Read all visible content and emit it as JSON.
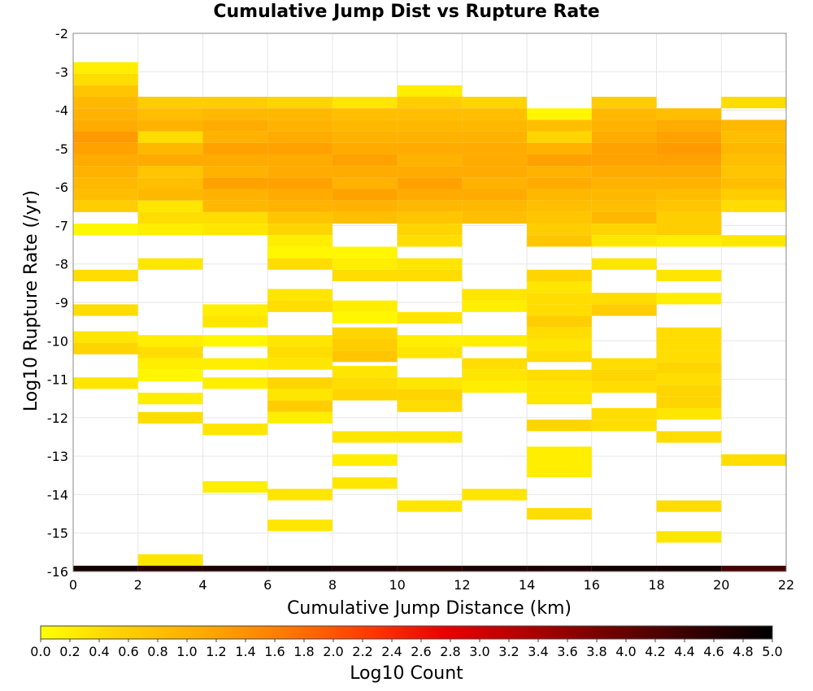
{
  "chart_data": {
    "type": "heatmap",
    "title": "Cumulative Jump Dist vs Rupture Rate",
    "xlabel": "Cumulative Jump Distance (km)",
    "ylabel": "Log10 Rupture Rate (/yr)",
    "xlim": [
      0,
      22
    ],
    "ylim": [
      -16,
      -2
    ],
    "xticks": [
      0,
      2,
      4,
      6,
      8,
      10,
      12,
      14,
      16,
      18,
      20,
      22
    ],
    "yticks": [
      -2,
      -3,
      -4,
      -5,
      -6,
      -7,
      -8,
      -9,
      -10,
      -11,
      -12,
      -13,
      -14,
      -15,
      -16
    ],
    "x_bin_width": 2,
    "y_bin_height": 0.3,
    "grid": true,
    "colorbar": {
      "label": "Log10 Count",
      "min": 0.0,
      "max": 5.0,
      "ticks": [
        "0.0",
        "0.2",
        "0.4",
        "0.6",
        "0.8",
        "1.0",
        "1.2",
        "1.4",
        "1.6",
        "1.8",
        "2.0",
        "2.2",
        "2.4",
        "2.6",
        "2.8",
        "3.0",
        "3.2",
        "3.4",
        "3.6",
        "3.8",
        "4.0",
        "4.2",
        "4.4",
        "4.6",
        "4.8",
        "5.0"
      ],
      "colors": [
        "#ffff00",
        "#ffd000",
        "#ffaa00",
        "#ff7a00",
        "#ff3c00",
        "#e80000",
        "#b00000",
        "#700000",
        "#380000",
        "#000000"
      ]
    },
    "columns": [
      {
        "x": 0,
        "cells": [
          {
            "y": -2.9,
            "v": 0.2
          },
          {
            "y": -3.2,
            "v": 0.4
          },
          {
            "y": -3.5,
            "v": 0.7
          },
          {
            "y": -3.8,
            "v": 0.9
          },
          {
            "y": -4.1,
            "v": 1.0
          },
          {
            "y": -4.4,
            "v": 1.1
          },
          {
            "y": -4.7,
            "v": 1.3
          },
          {
            "y": -5.0,
            "v": 1.2
          },
          {
            "y": -5.3,
            "v": 1.1
          },
          {
            "y": -5.6,
            "v": 1.0
          },
          {
            "y": -5.9,
            "v": 0.9
          },
          {
            "y": -6.2,
            "v": 0.8
          },
          {
            "y": -6.5,
            "v": 0.6
          },
          {
            "y": -7.1,
            "v": 0.1
          },
          {
            "y": -8.3,
            "v": 0.4
          },
          {
            "y": -9.2,
            "v": 0.4
          },
          {
            "y": -9.9,
            "v": 0.3
          },
          {
            "y": -10.2,
            "v": 0.5
          },
          {
            "y": -11.1,
            "v": 0.3
          },
          {
            "y": -16.0,
            "v": 4.8
          }
        ]
      },
      {
        "x": 2,
        "cells": [
          {
            "y": -3.8,
            "v": 0.6
          },
          {
            "y": -4.1,
            "v": 0.8
          },
          {
            "y": -4.4,
            "v": 1.0
          },
          {
            "y": -4.7,
            "v": 0.4
          },
          {
            "y": -5.0,
            "v": 0.9
          },
          {
            "y": -5.3,
            "v": 1.1
          },
          {
            "y": -5.6,
            "v": 0.7
          },
          {
            "y": -5.9,
            "v": 0.8
          },
          {
            "y": -6.2,
            "v": 0.9
          },
          {
            "y": -6.5,
            "v": 0.3
          },
          {
            "y": -6.8,
            "v": 0.4
          },
          {
            "y": -7.1,
            "v": 0.2
          },
          {
            "y": -8.0,
            "v": 0.3
          },
          {
            "y": -10.0,
            "v": 0.2
          },
          {
            "y": -10.3,
            "v": 0.4
          },
          {
            "y": -10.6,
            "v": 0.2
          },
          {
            "y": -10.9,
            "v": 0.1
          },
          {
            "y": -11.5,
            "v": 0.2
          },
          {
            "y": -12.0,
            "v": 0.4
          },
          {
            "y": -15.7,
            "v": 0.3
          },
          {
            "y": -16.0,
            "v": 4.6
          }
        ]
      },
      {
        "x": 4,
        "cells": [
          {
            "y": -3.8,
            "v": 0.6
          },
          {
            "y": -4.1,
            "v": 0.9
          },
          {
            "y": -4.4,
            "v": 1.1
          },
          {
            "y": -4.7,
            "v": 1.0
          },
          {
            "y": -5.0,
            "v": 1.2
          },
          {
            "y": -5.3,
            "v": 1.1
          },
          {
            "y": -5.6,
            "v": 1.0
          },
          {
            "y": -5.9,
            "v": 1.2
          },
          {
            "y": -6.2,
            "v": 1.0
          },
          {
            "y": -6.5,
            "v": 0.9
          },
          {
            "y": -6.8,
            "v": 0.4
          },
          {
            "y": -7.1,
            "v": 0.3
          },
          {
            "y": -9.2,
            "v": 0.2
          },
          {
            "y": -9.5,
            "v": 0.3
          },
          {
            "y": -10.0,
            "v": 0.1
          },
          {
            "y": -10.6,
            "v": 0.2
          },
          {
            "y": -11.1,
            "v": 0.2
          },
          {
            "y": -12.3,
            "v": 0.3
          },
          {
            "y": -13.8,
            "v": 0.2
          },
          {
            "y": -16.0,
            "v": 4.7
          }
        ]
      },
      {
        "x": 6,
        "cells": [
          {
            "y": -3.8,
            "v": 0.5
          },
          {
            "y": -4.1,
            "v": 0.9
          },
          {
            "y": -4.4,
            "v": 1.0
          },
          {
            "y": -4.7,
            "v": 1.1
          },
          {
            "y": -5.0,
            "v": 1.2
          },
          {
            "y": -5.3,
            "v": 1.1
          },
          {
            "y": -5.6,
            "v": 1.1
          },
          {
            "y": -5.9,
            "v": 1.2
          },
          {
            "y": -6.2,
            "v": 1.1
          },
          {
            "y": -6.5,
            "v": 1.0
          },
          {
            "y": -6.8,
            "v": 0.7
          },
          {
            "y": -7.1,
            "v": 0.5
          },
          {
            "y": -7.4,
            "v": 0.2
          },
          {
            "y": -7.7,
            "v": 0.1
          },
          {
            "y": -8.0,
            "v": 0.4
          },
          {
            "y": -8.8,
            "v": 0.3
          },
          {
            "y": -9.1,
            "v": 0.4
          },
          {
            "y": -10.0,
            "v": 0.3
          },
          {
            "y": -10.3,
            "v": 0.4
          },
          {
            "y": -10.6,
            "v": 0.3
          },
          {
            "y": -11.1,
            "v": 0.5
          },
          {
            "y": -11.4,
            "v": 0.3
          },
          {
            "y": -11.7,
            "v": 0.6
          },
          {
            "y": -12.0,
            "v": 0.2
          },
          {
            "y": -14.0,
            "v": 0.3
          },
          {
            "y": -14.8,
            "v": 0.3
          },
          {
            "y": -16.0,
            "v": 4.8
          }
        ]
      },
      {
        "x": 8,
        "cells": [
          {
            "y": -3.8,
            "v": 0.3
          },
          {
            "y": -4.1,
            "v": 0.8
          },
          {
            "y": -4.4,
            "v": 0.9
          },
          {
            "y": -4.7,
            "v": 1.0
          },
          {
            "y": -5.0,
            "v": 1.1
          },
          {
            "y": -5.3,
            "v": 1.2
          },
          {
            "y": -5.6,
            "v": 1.1
          },
          {
            "y": -5.9,
            "v": 1.0
          },
          {
            "y": -6.2,
            "v": 1.2
          },
          {
            "y": -6.5,
            "v": 1.0
          },
          {
            "y": -6.8,
            "v": 0.8
          },
          {
            "y": -7.7,
            "v": 0.1
          },
          {
            "y": -8.0,
            "v": 0.2
          },
          {
            "y": -8.3,
            "v": 0.4
          },
          {
            "y": -9.1,
            "v": 0.2
          },
          {
            "y": -9.4,
            "v": 0.1
          },
          {
            "y": -9.8,
            "v": 0.5
          },
          {
            "y": -10.1,
            "v": 0.6
          },
          {
            "y": -10.4,
            "v": 0.7
          },
          {
            "y": -10.8,
            "v": 0.3
          },
          {
            "y": -11.1,
            "v": 0.4
          },
          {
            "y": -11.4,
            "v": 0.5
          },
          {
            "y": -12.5,
            "v": 0.3
          },
          {
            "y": -13.1,
            "v": 0.2
          },
          {
            "y": -13.7,
            "v": 0.3
          },
          {
            "y": -16.0,
            "v": 4.7
          }
        ]
      },
      {
        "x": 10,
        "cells": [
          {
            "y": -3.5,
            "v": 0.2
          },
          {
            "y": -3.8,
            "v": 0.6
          },
          {
            "y": -4.1,
            "v": 0.8
          },
          {
            "y": -4.4,
            "v": 0.9
          },
          {
            "y": -4.7,
            "v": 1.0
          },
          {
            "y": -5.0,
            "v": 1.1
          },
          {
            "y": -5.3,
            "v": 1.0
          },
          {
            "y": -5.6,
            "v": 1.1
          },
          {
            "y": -5.9,
            "v": 1.2
          },
          {
            "y": -6.2,
            "v": 1.1
          },
          {
            "y": -6.5,
            "v": 0.9
          },
          {
            "y": -6.8,
            "v": 0.7
          },
          {
            "y": -7.1,
            "v": 0.5
          },
          {
            "y": -7.4,
            "v": 0.4
          },
          {
            "y": -8.0,
            "v": 0.3
          },
          {
            "y": -8.3,
            "v": 0.4
          },
          {
            "y": -9.4,
            "v": 0.3
          },
          {
            "y": -10.0,
            "v": 0.2
          },
          {
            "y": -10.3,
            "v": 0.3
          },
          {
            "y": -11.1,
            "v": 0.3
          },
          {
            "y": -11.4,
            "v": 0.5
          },
          {
            "y": -11.7,
            "v": 0.4
          },
          {
            "y": -12.5,
            "v": 0.3
          },
          {
            "y": -14.3,
            "v": 0.3
          },
          {
            "y": -16.0,
            "v": 4.6
          }
        ]
      },
      {
        "x": 12,
        "cells": [
          {
            "y": -3.8,
            "v": 0.5
          },
          {
            "y": -4.1,
            "v": 0.8
          },
          {
            "y": -4.4,
            "v": 0.9
          },
          {
            "y": -4.7,
            "v": 1.0
          },
          {
            "y": -5.0,
            "v": 1.1
          },
          {
            "y": -5.3,
            "v": 1.1
          },
          {
            "y": -5.6,
            "v": 1.1
          },
          {
            "y": -5.9,
            "v": 1.0
          },
          {
            "y": -6.2,
            "v": 1.1
          },
          {
            "y": -6.5,
            "v": 0.9
          },
          {
            "y": -6.8,
            "v": 0.8
          },
          {
            "y": -8.8,
            "v": 0.3
          },
          {
            "y": -9.1,
            "v": 0.2
          },
          {
            "y": -10.0,
            "v": 0.2
          },
          {
            "y": -10.6,
            "v": 0.4
          },
          {
            "y": -10.9,
            "v": 0.3
          },
          {
            "y": -11.2,
            "v": 0.2
          },
          {
            "y": -14.0,
            "v": 0.3
          },
          {
            "y": -16.0,
            "v": 4.7
          }
        ]
      },
      {
        "x": 14,
        "cells": [
          {
            "y": -4.1,
            "v": 0.1
          },
          {
            "y": -4.4,
            "v": 0.8
          },
          {
            "y": -4.7,
            "v": 0.5
          },
          {
            "y": -5.0,
            "v": 1.0
          },
          {
            "y": -5.3,
            "v": 1.2
          },
          {
            "y": -5.6,
            "v": 1.0
          },
          {
            "y": -5.9,
            "v": 1.1
          },
          {
            "y": -6.2,
            "v": 0.9
          },
          {
            "y": -6.5,
            "v": 0.8
          },
          {
            "y": -6.8,
            "v": 0.7
          },
          {
            "y": -7.1,
            "v": 0.6
          },
          {
            "y": -7.4,
            "v": 0.7
          },
          {
            "y": -8.3,
            "v": 0.5
          },
          {
            "y": -8.6,
            "v": 0.3
          },
          {
            "y": -8.9,
            "v": 0.4
          },
          {
            "y": -9.2,
            "v": 0.4
          },
          {
            "y": -9.5,
            "v": 0.6
          },
          {
            "y": -9.8,
            "v": 0.4
          },
          {
            "y": -10.1,
            "v": 0.3
          },
          {
            "y": -10.4,
            "v": 0.4
          },
          {
            "y": -10.9,
            "v": 0.4
          },
          {
            "y": -11.2,
            "v": 0.3
          },
          {
            "y": -11.5,
            "v": 0.3
          },
          {
            "y": -12.2,
            "v": 0.5
          },
          {
            "y": -12.9,
            "v": 0.2
          },
          {
            "y": -13.2,
            "v": 0.2
          },
          {
            "y": -13.4,
            "v": 0.2
          },
          {
            "y": -14.5,
            "v": 0.4
          },
          {
            "y": -16.0,
            "v": 4.7
          }
        ]
      },
      {
        "x": 16,
        "cells": [
          {
            "y": -3.8,
            "v": 0.6
          },
          {
            "y": -4.1,
            "v": 0.9
          },
          {
            "y": -4.4,
            "v": 1.0
          },
          {
            "y": -4.7,
            "v": 1.1
          },
          {
            "y": -5.0,
            "v": 1.2
          },
          {
            "y": -5.3,
            "v": 1.2
          },
          {
            "y": -5.6,
            "v": 1.1
          },
          {
            "y": -5.9,
            "v": 1.0
          },
          {
            "y": -6.2,
            "v": 0.9
          },
          {
            "y": -6.5,
            "v": 0.8
          },
          {
            "y": -6.8,
            "v": 0.9
          },
          {
            "y": -7.1,
            "v": 0.5
          },
          {
            "y": -7.4,
            "v": 0.3
          },
          {
            "y": -8.0,
            "v": 0.3
          },
          {
            "y": -8.9,
            "v": 0.4
          },
          {
            "y": -9.2,
            "v": 0.6
          },
          {
            "y": -10.6,
            "v": 0.4
          },
          {
            "y": -10.9,
            "v": 0.5
          },
          {
            "y": -11.2,
            "v": 0.4
          },
          {
            "y": -11.9,
            "v": 0.4
          },
          {
            "y": -12.2,
            "v": 0.4
          },
          {
            "y": -16.0,
            "v": 4.8
          }
        ]
      },
      {
        "x": 18,
        "cells": [
          {
            "y": -4.1,
            "v": 0.8
          },
          {
            "y": -4.4,
            "v": 1.1
          },
          {
            "y": -4.7,
            "v": 1.2
          },
          {
            "y": -5.0,
            "v": 1.3
          },
          {
            "y": -5.3,
            "v": 1.2
          },
          {
            "y": -5.6,
            "v": 1.1
          },
          {
            "y": -5.9,
            "v": 1.0
          },
          {
            "y": -6.2,
            "v": 0.8
          },
          {
            "y": -6.5,
            "v": 0.7
          },
          {
            "y": -6.8,
            "v": 0.6
          },
          {
            "y": -7.1,
            "v": 0.6
          },
          {
            "y": -7.4,
            "v": 0.2
          },
          {
            "y": -8.3,
            "v": 0.3
          },
          {
            "y": -8.9,
            "v": 0.2
          },
          {
            "y": -9.8,
            "v": 0.4
          },
          {
            "y": -10.1,
            "v": 0.4
          },
          {
            "y": -10.4,
            "v": 0.4
          },
          {
            "y": -10.7,
            "v": 0.5
          },
          {
            "y": -11.0,
            "v": 0.4
          },
          {
            "y": -11.3,
            "v": 0.5
          },
          {
            "y": -11.6,
            "v": 0.5
          },
          {
            "y": -11.9,
            "v": 0.3
          },
          {
            "y": -12.5,
            "v": 0.4
          },
          {
            "y": -14.3,
            "v": 0.4
          },
          {
            "y": -15.1,
            "v": 0.3
          },
          {
            "y": -16.0,
            "v": 4.8
          }
        ]
      },
      {
        "x": 20,
        "cells": [
          {
            "y": -3.8,
            "v": 0.4
          },
          {
            "y": -4.4,
            "v": 0.9
          },
          {
            "y": -4.7,
            "v": 0.8
          },
          {
            "y": -5.0,
            "v": 0.9
          },
          {
            "y": -5.3,
            "v": 0.8
          },
          {
            "y": -5.6,
            "v": 0.7
          },
          {
            "y": -5.9,
            "v": 0.8
          },
          {
            "y": -6.2,
            "v": 0.6
          },
          {
            "y": -6.5,
            "v": 0.4
          },
          {
            "y": -7.4,
            "v": 0.3
          },
          {
            "y": -13.1,
            "v": 0.4
          },
          {
            "y": -16.0,
            "v": 4.3
          }
        ]
      }
    ]
  }
}
